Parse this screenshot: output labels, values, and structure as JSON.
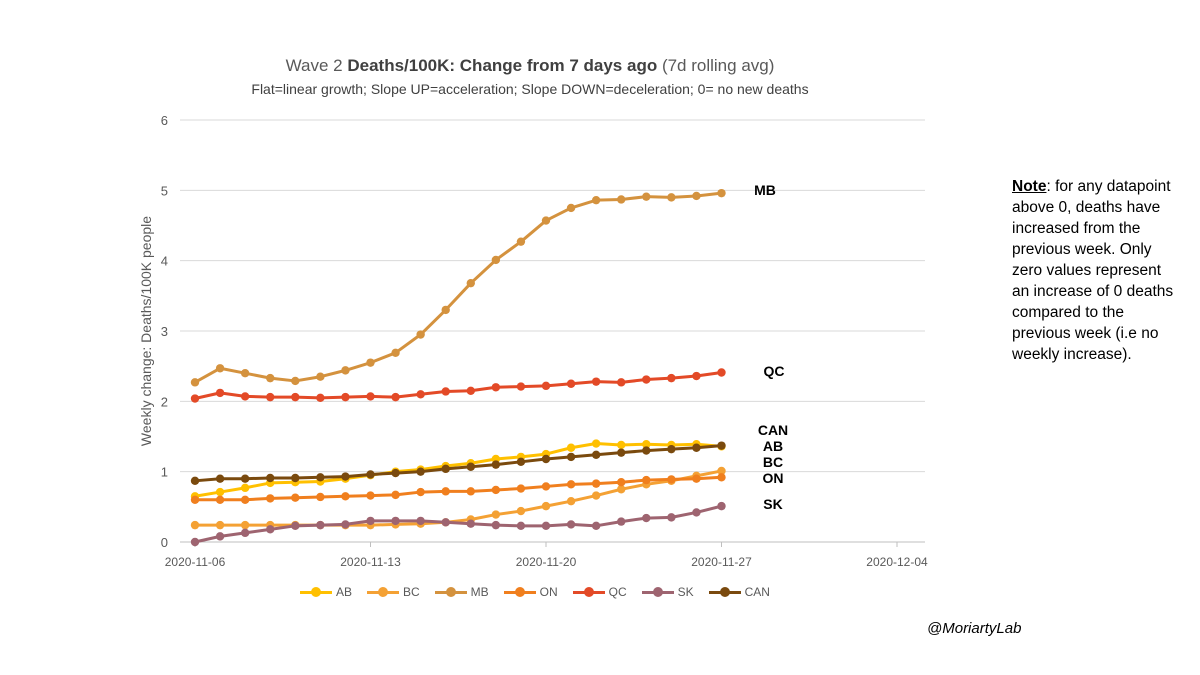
{
  "chart_data": {
    "type": "line",
    "title_prefix": "Wave 2 ",
    "title_bold": "Deaths/100K: Change from 7 days ago",
    "title_suffix": " (7d rolling avg)",
    "subtitle": "Flat=linear growth; Slope UP=acceleration; Slope DOWN=deceleration; 0= no new deaths",
    "ylabel": "Weekly change: Deaths/100K people",
    "ylim": [
      0,
      6
    ],
    "yticks": [
      "0",
      "1",
      "2",
      "3",
      "4",
      "5",
      "6"
    ],
    "xlim": [
      "2020-11-06",
      "2020-12-04"
    ],
    "xticks": [
      "2020-11-06",
      "2020-11-13",
      "2020-11-20",
      "2020-11-27",
      "2020-12-04"
    ],
    "grid": true,
    "legend_position": "bottom",
    "x": [
      "2020-11-06",
      "2020-11-07",
      "2020-11-08",
      "2020-11-09",
      "2020-11-10",
      "2020-11-11",
      "2020-11-12",
      "2020-11-13",
      "2020-11-14",
      "2020-11-15",
      "2020-11-16",
      "2020-11-17",
      "2020-11-18",
      "2020-11-19",
      "2020-11-20",
      "2020-11-21",
      "2020-11-22",
      "2020-11-23",
      "2020-11-24",
      "2020-11-25",
      "2020-11-26",
      "2020-11-27"
    ],
    "series": [
      {
        "name": "AB",
        "color": "#ffc000",
        "values": [
          0.65,
          0.71,
          0.77,
          0.84,
          0.85,
          0.86,
          0.9,
          0.95,
          1.0,
          1.03,
          1.08,
          1.12,
          1.18,
          1.21,
          1.25,
          1.34,
          1.4,
          1.38,
          1.39,
          1.38,
          1.39,
          1.36
        ]
      },
      {
        "name": "BC",
        "color": "#f4a134",
        "values": [
          0.24,
          0.24,
          0.24,
          0.24,
          0.24,
          0.24,
          0.24,
          0.24,
          0.25,
          0.26,
          0.28,
          0.32,
          0.39,
          0.44,
          0.51,
          0.58,
          0.66,
          0.75,
          0.82,
          0.87,
          0.94,
          1.01
        ]
      },
      {
        "name": "MB",
        "color": "#d4923e",
        "values": [
          2.27,
          2.47,
          2.4,
          2.33,
          2.29,
          2.35,
          2.44,
          2.55,
          2.69,
          2.95,
          3.3,
          3.68,
          4.01,
          4.27,
          4.57,
          4.75,
          4.86,
          4.87,
          4.91,
          4.9,
          4.92,
          4.96
        ]
      },
      {
        "name": "ON",
        "color": "#f07f1e",
        "values": [
          0.6,
          0.6,
          0.6,
          0.62,
          0.63,
          0.64,
          0.65,
          0.66,
          0.67,
          0.71,
          0.72,
          0.72,
          0.74,
          0.76,
          0.79,
          0.82,
          0.83,
          0.85,
          0.88,
          0.89,
          0.9,
          0.92
        ]
      },
      {
        "name": "QC",
        "color": "#e34a27",
        "values": [
          2.04,
          2.12,
          2.07,
          2.06,
          2.06,
          2.05,
          2.06,
          2.07,
          2.06,
          2.1,
          2.14,
          2.15,
          2.2,
          2.21,
          2.22,
          2.25,
          2.28,
          2.27,
          2.31,
          2.33,
          2.36,
          2.41
        ]
      },
      {
        "name": "SK",
        "color": "#9e6470",
        "values": [
          0.0,
          0.08,
          0.13,
          0.18,
          0.23,
          0.24,
          0.25,
          0.3,
          0.3,
          0.3,
          0.28,
          0.26,
          0.24,
          0.23,
          0.23,
          0.25,
          0.23,
          0.29,
          0.34,
          0.35,
          0.42,
          0.51
        ]
      },
      {
        "name": "CAN",
        "color": "#7a4a0e",
        "values": [
          0.87,
          0.9,
          0.9,
          0.91,
          0.91,
          0.92,
          0.93,
          0.96,
          0.98,
          1.0,
          1.04,
          1.07,
          1.1,
          1.14,
          1.18,
          1.21,
          1.24,
          1.27,
          1.3,
          1.32,
          1.34,
          1.37
        ]
      }
    ],
    "annotations": [
      "MB",
      "QC",
      "CAN",
      "AB",
      "BC",
      "ON",
      "SK"
    ]
  },
  "note": {
    "heading": "Note",
    "text": ": for any datapoint above 0, deaths have increased from the previous week. Only zero values represent an increase of 0 deaths compared to the previous week (i.e no weekly increase)."
  },
  "credit": "@MoriartyLab"
}
